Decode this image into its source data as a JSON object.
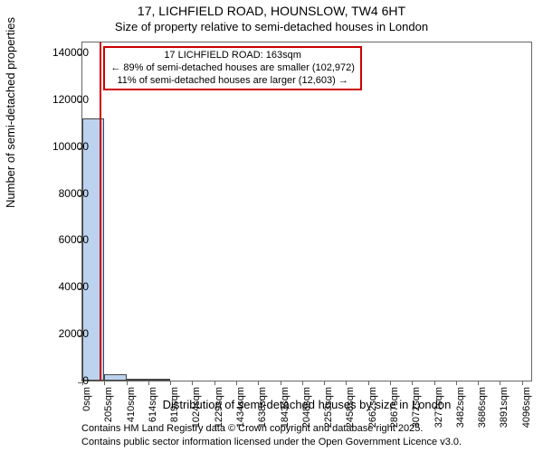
{
  "title": "17, LICHFIELD ROAD, HOUNSLOW, TW4 6HT",
  "subtitle": "Size of property relative to semi-detached houses in London",
  "chart": {
    "type": "histogram",
    "background_color": "#ffffff",
    "bar_fill": "#bcd3ef",
    "bar_border": "#444444",
    "xlabel": "Distribution of semi-detached houses by size in London",
    "ylabel": "Number of semi-detached properties",
    "label_fontsize": 13,
    "title_fontsize": 14,
    "tick_fontsize": 12,
    "xlim": [
      0,
      4200
    ],
    "ylim": [
      0,
      145000
    ],
    "y_ticks": [
      0,
      20000,
      40000,
      60000,
      80000,
      100000,
      120000,
      140000
    ],
    "x_ticks": [
      0,
      205,
      410,
      614,
      819,
      1024,
      1229,
      1434,
      1638,
      1843,
      2048,
      2253,
      2458,
      2662,
      2867,
      3072,
      3277,
      3482,
      3686,
      3891,
      4096
    ],
    "x_tick_suffix": "sqm",
    "bar_width_sqm": 205,
    "bars": [
      {
        "x0": 0,
        "count": 112000
      },
      {
        "x0": 205,
        "count": 2800
      },
      {
        "x0": 410,
        "count": 400
      },
      {
        "x0": 614,
        "count": 150
      }
    ],
    "ref_value_sqm": 163,
    "ref_line_color": "#cc0000",
    "annotation": {
      "line1": "17 LICHFIELD ROAD: 163sqm",
      "line2": "← 89% of semi-detached houses are smaller (102,972)",
      "line3": "11% of semi-detached houses are larger (12,603) →",
      "border_color": "#cc0000",
      "fontsize": 11
    }
  },
  "attribution": {
    "line1": "Contains HM Land Registry data © Crown copyright and database right 2025.",
    "line2": "Contains public sector information licensed under the Open Government Licence v3.0."
  }
}
